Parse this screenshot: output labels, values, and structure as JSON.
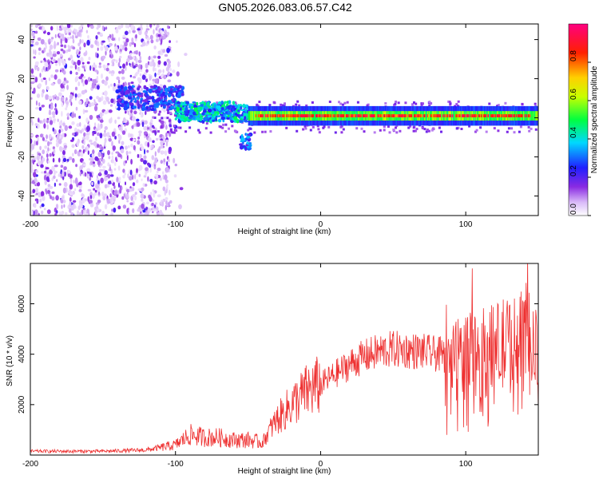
{
  "title": "GN05.2026.083.06.57.C42",
  "chart_data": [
    {
      "type": "heatmap",
      "xlabel": "Height of straight line (km)",
      "ylabel": "Frequency (Hz)",
      "xlim": [
        -200,
        150
      ],
      "ylim": [
        -50,
        48
      ],
      "xticks": [
        -200,
        -100,
        0,
        100
      ],
      "yticks": [
        -40,
        -20,
        0,
        20,
        40
      ],
      "colorbar": {
        "label": "Normalized spectral amplitude",
        "range": [
          0,
          1
        ],
        "ticks": [
          0.0,
          0.2,
          0.4,
          0.6,
          0.8
        ],
        "tick_labels": [
          "0.0",
          "0.2",
          "0.4",
          "0.6",
          "0.8"
        ],
        "colormap": "rainbow (white-purple-blue-cyan-green-yellow-red-magenta)"
      },
      "features": [
        {
          "region": "x -200 to -103",
          "description": "broadband scattered noise across all frequencies",
          "amplitude": 0.15
        },
        {
          "region": "x -140 to -95",
          "center_freq_hz": 10,
          "amplitude": 0.3
        },
        {
          "region": "x -100 to -50",
          "center_freq_hz": 3,
          "amplitude": 0.45
        },
        {
          "region": "x -55 to -48",
          "center_freq_hz": -12,
          "amplitude": 0.35
        },
        {
          "region": "x -50 to 150",
          "center_freq_hz": 1,
          "amplitude": 0.95,
          "description": "narrow high-amplitude band"
        }
      ]
    },
    {
      "type": "line",
      "xlabel": "Height of straight line (km)",
      "ylabel": "SNR (10 * v/v)",
      "xlim": [
        -200,
        150
      ],
      "ylim": [
        0,
        7600
      ],
      "xticks": [
        -200,
        -100,
        0,
        100
      ],
      "yticks": [
        2000,
        4000,
        6000
      ],
      "color": "#ee3030",
      "x": [
        -200,
        -150,
        -120,
        -100,
        -90,
        -80,
        -70,
        -60,
        -50,
        -40,
        -35,
        -30,
        -20,
        -10,
        0,
        10,
        20,
        30,
        40,
        50,
        60,
        70,
        80,
        90,
        100,
        110,
        120,
        130,
        140,
        150
      ],
      "y": [
        150,
        150,
        200,
        400,
        800,
        700,
        700,
        600,
        600,
        500,
        1000,
        1400,
        2000,
        2500,
        2800,
        3200,
        3600,
        3900,
        4100,
        4200,
        4150,
        4100,
        4000,
        3900,
        3900,
        4000,
        4200,
        4400,
        4300,
        4000
      ]
    }
  ]
}
